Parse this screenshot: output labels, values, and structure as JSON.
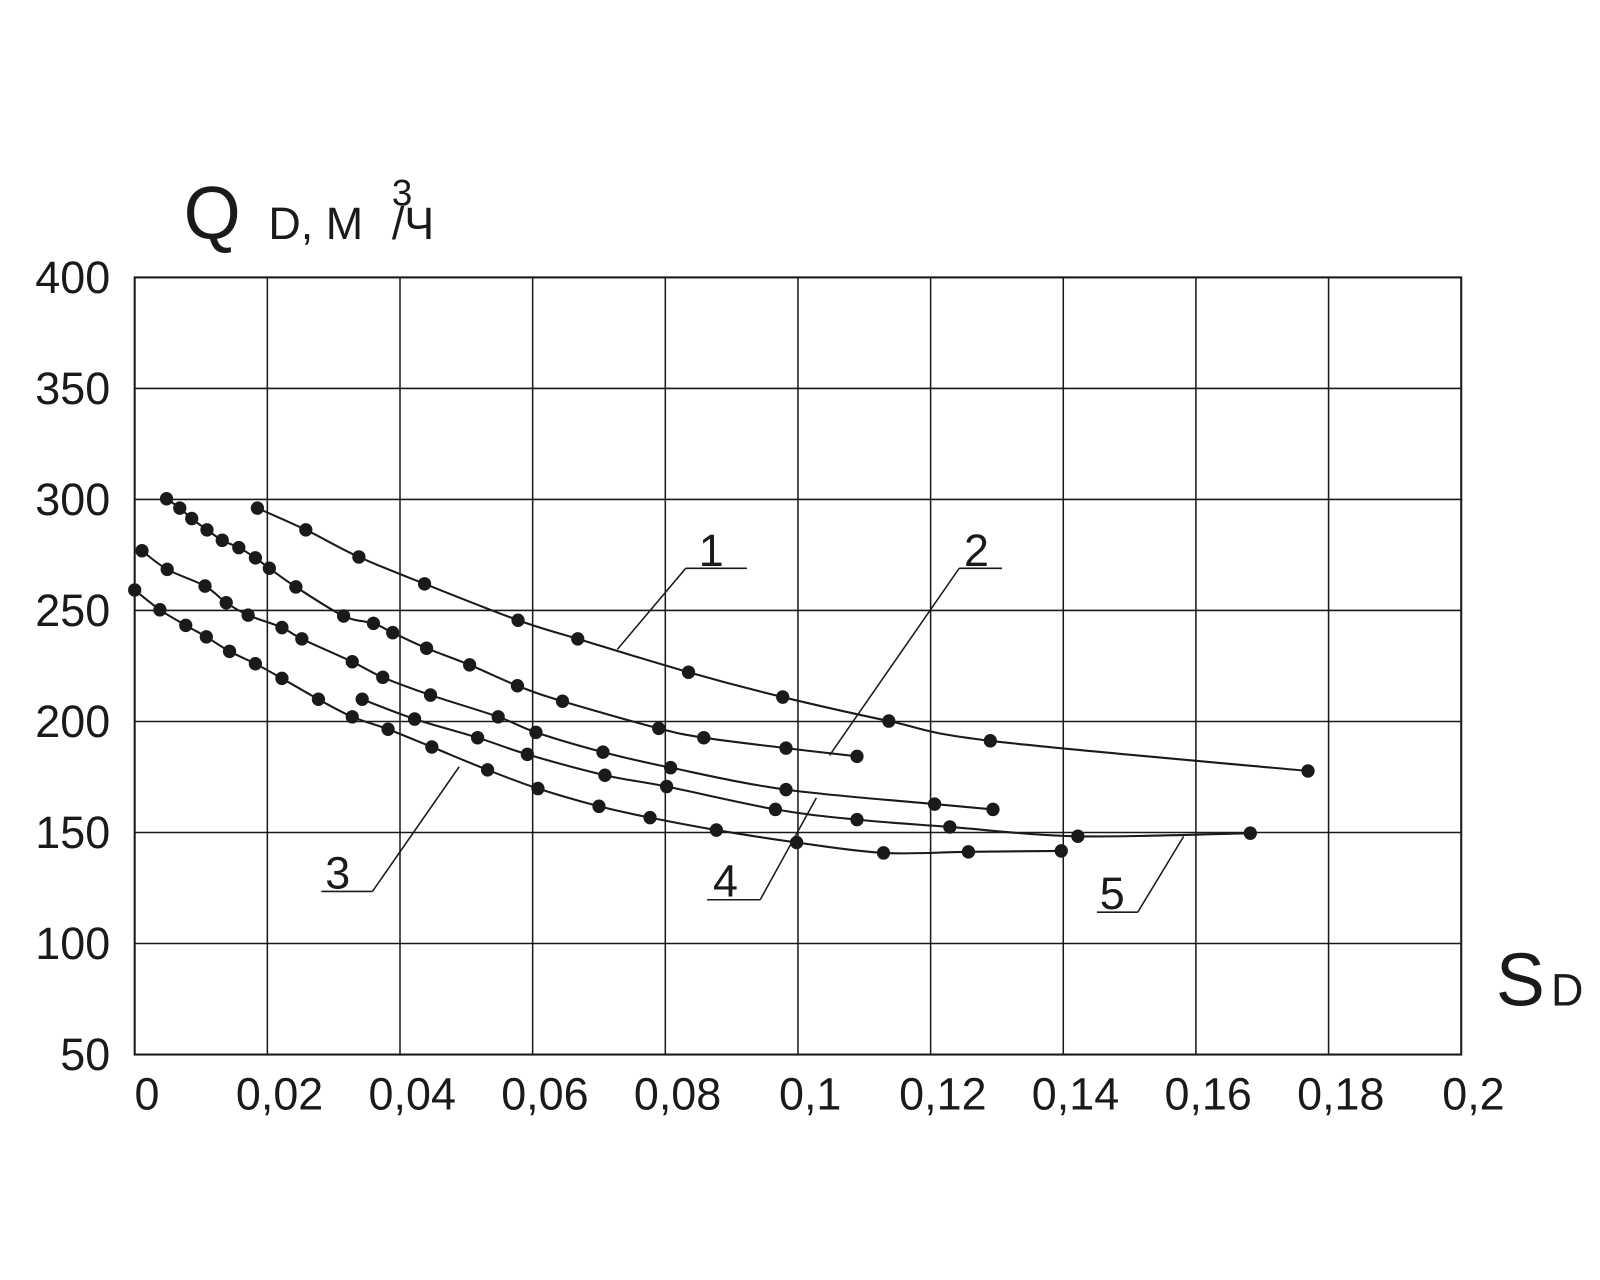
{
  "chart_data": {
    "type": "scatter",
    "y_label": {
      "symbol": "Q",
      "subscript": "D, М",
      "unit_power": "3",
      "unit_denominator": "/Ч"
    },
    "x_label": {
      "symbol": "S",
      "subscript": "D"
    },
    "color": "#1a1a1a",
    "grid": true,
    "xlim": [
      0,
      0.2
    ],
    "ylim": [
      50,
      400
    ],
    "xticks": [
      0,
      {
        "value": 0.02,
        "label": "0,02"
      },
      {
        "value": 0.04,
        "label": "0,04"
      },
      {
        "value": 0.06,
        "label": "0,06"
      },
      {
        "value": 0.08,
        "label": "0,08"
      },
      {
        "value": 0.1,
        "label": "0,1"
      },
      {
        "value": 0.12,
        "label": "0,12"
      },
      {
        "value": 0.14,
        "label": "0,14"
      },
      {
        "value": 0.16,
        "label": "0,16"
      },
      {
        "value": 0.18,
        "label": "0,18"
      },
      {
        "value": 0.2,
        "label": "0,2"
      }
    ],
    "yticks": [
      50,
      100,
      150,
      200,
      250,
      300,
      350,
      400
    ],
    "series": [
      {
        "name": "1",
        "x": [
          0.0185,
          0.0258,
          0.0338,
          0.0437,
          0.0578,
          0.0668,
          0.0835,
          0.0977,
          0.1137,
          0.129,
          0.1769
        ],
        "y": [
          296.1,
          286.3,
          274.1,
          262.0,
          245.6,
          237.2,
          222.2,
          211.0,
          200.2,
          191.3,
          177.7
        ]
      },
      {
        "name": "2",
        "x": [
          0.0048,
          0.0068,
          0.0086,
          0.0109,
          0.0132,
          0.0157,
          0.0182,
          0.0203,
          0.0243,
          0.0315,
          0.036,
          0.0389,
          0.044,
          0.0505,
          0.0577,
          0.0645,
          0.079,
          0.0858,
          0.0982,
          0.1089
        ],
        "y": [
          300.3,
          296.1,
          291.4,
          286.3,
          281.6,
          278.3,
          273.7,
          269.0,
          260.6,
          247.5,
          244.2,
          240.0,
          233.0,
          225.5,
          216.1,
          209.1,
          196.9,
          192.7,
          188.0,
          184.3
        ]
      },
      {
        "name": "3",
        "x": [
          0,
          0.0038,
          0.0077,
          0.0108,
          0.0143,
          0.0182,
          0.0222,
          0.0277,
          0.0328,
          0.0382,
          0.0448,
          0.0532,
          0.0608,
          0.07,
          0.0777,
          0.0877,
          0.0998,
          0.1129,
          0.1257,
          0.1397
        ],
        "y": [
          259.2,
          250.3,
          243.3,
          238.1,
          231.6,
          226.0,
          219.4,
          210.0,
          202.1,
          196.5,
          188.5,
          178.2,
          169.8,
          161.8,
          156.7,
          151.1,
          145.5,
          140.8,
          141.3,
          141.7
        ]
      },
      {
        "name": "4",
        "x": [
          0.0011,
          0.0049,
          0.0106,
          0.0138,
          0.0171,
          0.0222,
          0.0252,
          0.0328,
          0.0374,
          0.0446,
          0.0548,
          0.0605,
          0.0706,
          0.0808,
          0.0982,
          0.1206,
          0.1294
        ],
        "y": [
          276.9,
          268.5,
          261.0,
          253.5,
          247.9,
          242.3,
          237.2,
          226.9,
          219.9,
          211.9,
          202.1,
          195.1,
          186.2,
          179.2,
          169.3,
          162.8,
          160.4
        ]
      },
      {
        "name": "5",
        "x": [
          0.0343,
          0.0422,
          0.0517,
          0.0592,
          0.0709,
          0.0802,
          0.0966,
          0.1089,
          0.1229,
          0.1422,
          0.1682
        ],
        "y": [
          210.0,
          201.1,
          192.7,
          185.2,
          175.8,
          170.7,
          160.4,
          155.8,
          152.5,
          148.3,
          149.7
        ]
      }
    ]
  }
}
